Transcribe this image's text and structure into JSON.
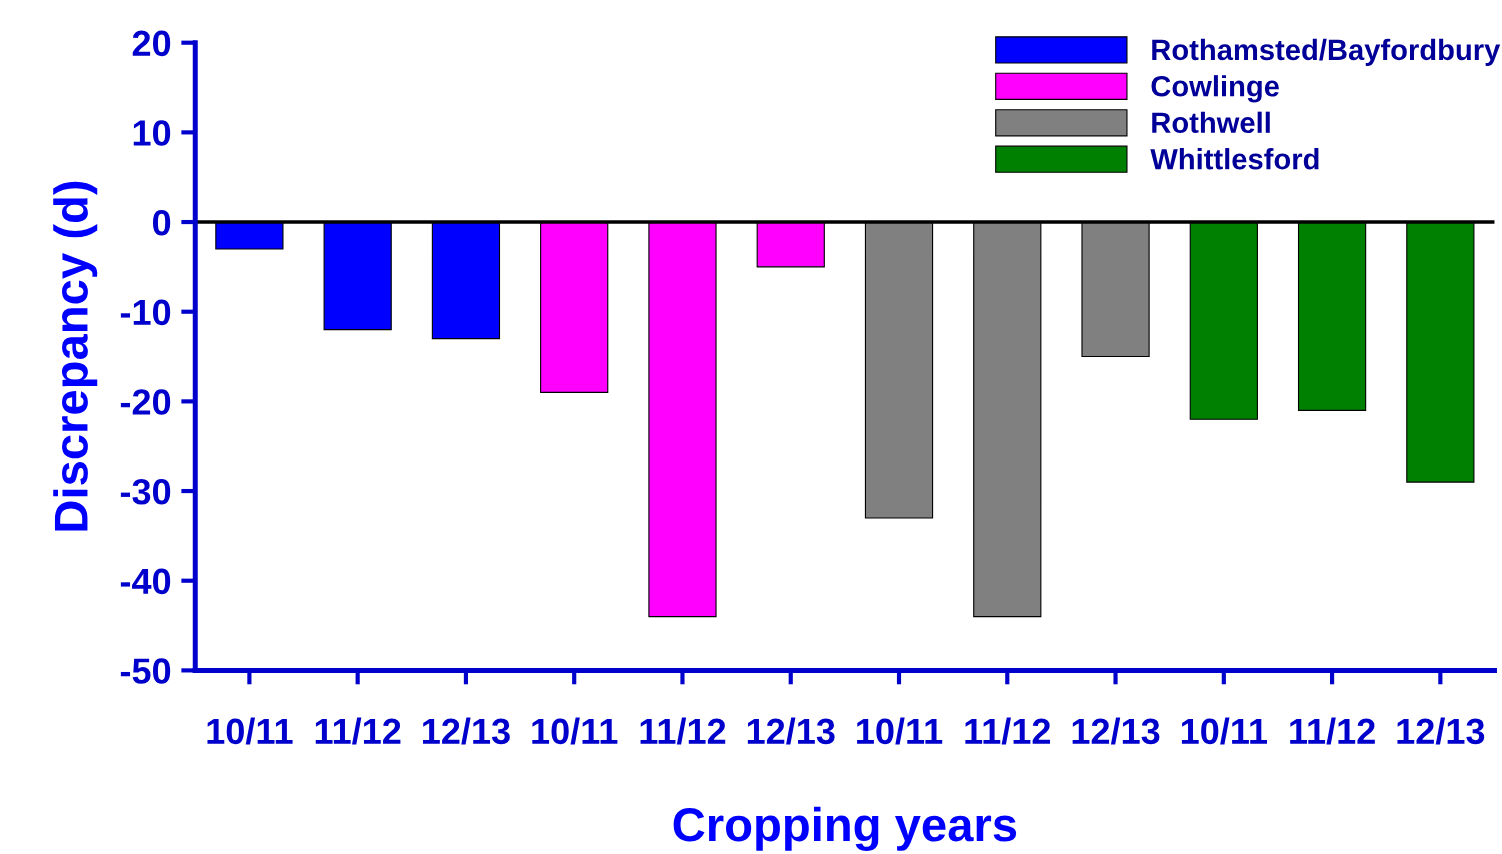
{
  "chart_data": {
    "type": "bar",
    "xlabel": "Cropping years",
    "ylabel": "Discrepancy (d)",
    "categories": [
      "10/11",
      "11/12",
      "12/13",
      "10/11",
      "11/12",
      "12/13",
      "10/11",
      "11/12",
      "12/13",
      "10/11",
      "11/12",
      "12/13"
    ],
    "series": [
      {
        "name": "Rothamsted/Bayfordbury",
        "color": "#0000ff",
        "values": [
          -3,
          -12,
          -13,
          null,
          null,
          null,
          null,
          null,
          null,
          null,
          null,
          null
        ]
      },
      {
        "name": "Cowlinge",
        "color": "#ff00ff",
        "values": [
          null,
          null,
          null,
          -19,
          -44,
          -5,
          null,
          null,
          null,
          null,
          null,
          null
        ]
      },
      {
        "name": "Rothwell",
        "color": "#808080",
        "values": [
          null,
          null,
          null,
          null,
          null,
          null,
          -33,
          -44,
          -15,
          null,
          null,
          null
        ]
      },
      {
        "name": "Whittlesford",
        "color": "#008000",
        "values": [
          null,
          null,
          null,
          null,
          null,
          null,
          null,
          null,
          null,
          -22,
          -21,
          -29
        ]
      }
    ],
    "ylim": [
      -50,
      20
    ],
    "yticks": [
      -50,
      -40,
      -30,
      -20,
      -10,
      0,
      10,
      20
    ],
    "ref_lines": [
      {
        "axis": "y",
        "value": 0,
        "color": "#000000"
      }
    ],
    "grid": false,
    "legend": "top right"
  }
}
